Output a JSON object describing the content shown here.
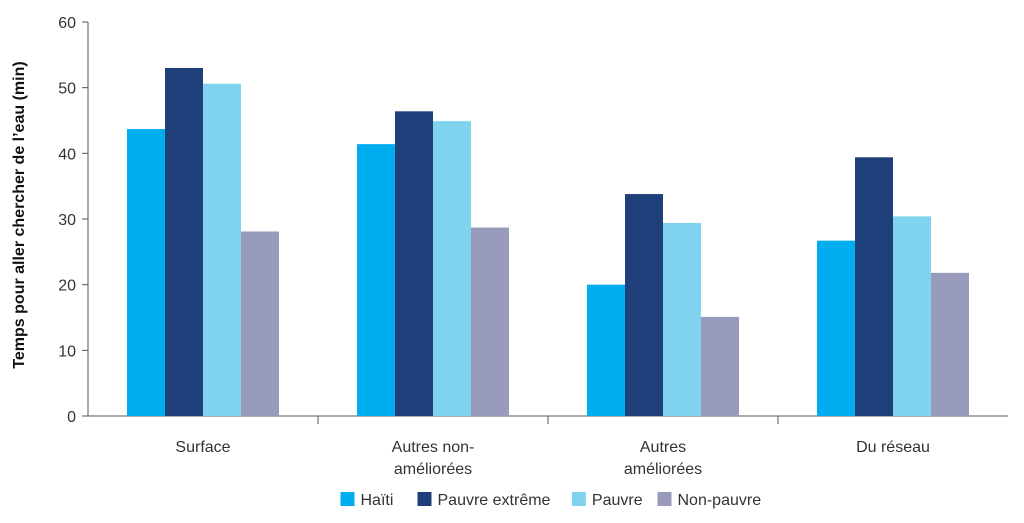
{
  "chart_data": {
    "type": "bar",
    "title": "",
    "xlabel": "",
    "ylabel": "Temps pour aller chercher de l’eau (min)",
    "ylim": [
      0,
      60
    ],
    "yticks": [
      0,
      10,
      20,
      30,
      40,
      50,
      60
    ],
    "grid": false,
    "legend_position": "bottom",
    "categories": [
      [
        "Surface"
      ],
      [
        "Autres non-",
        "améliorées"
      ],
      [
        "Autres",
        "améliorées"
      ],
      [
        "Du réseau"
      ]
    ],
    "series": [
      {
        "name": "Haïti",
        "color": "#00aeef",
        "values": [
          43.7,
          41.4,
          20.0,
          26.7
        ]
      },
      {
        "name": "Pauvre extrême",
        "color": "#1f3f7a",
        "values": [
          53.0,
          46.4,
          33.8,
          39.4
        ]
      },
      {
        "name": "Pauvre",
        "color": "#7fd3ee",
        "values": [
          50.6,
          44.9,
          29.4,
          30.4
        ]
      },
      {
        "name": "Non-pauvre",
        "color": "#999bbd",
        "values": [
          28.1,
          28.7,
          15.1,
          21.8
        ]
      }
    ]
  }
}
